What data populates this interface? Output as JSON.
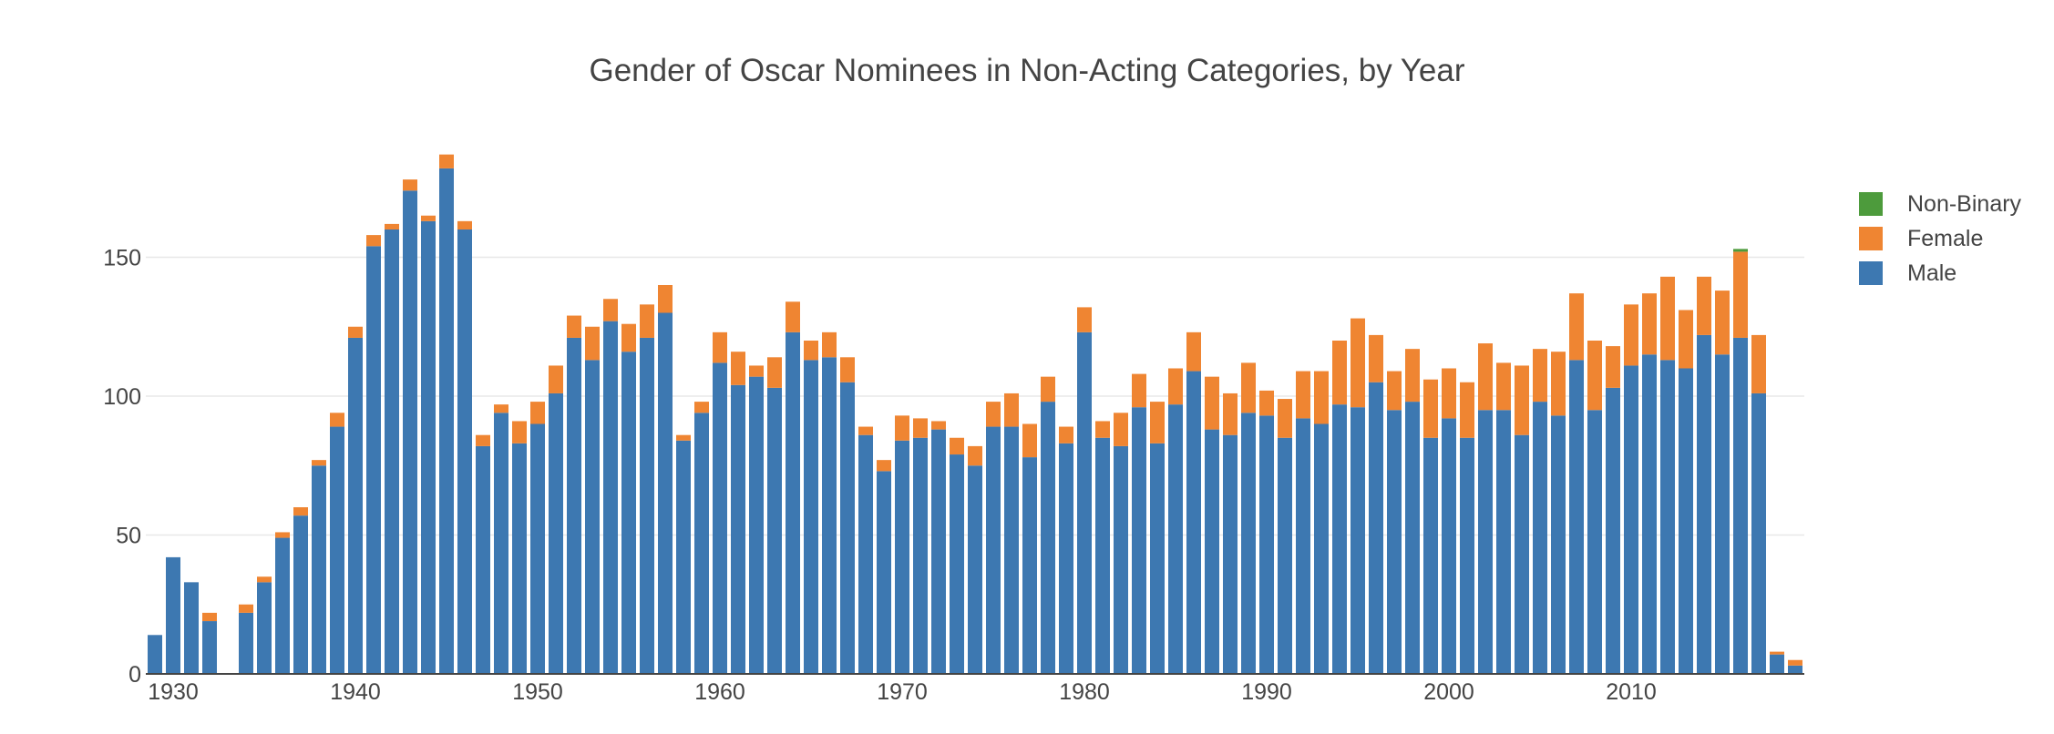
{
  "chart_data": {
    "type": "bar",
    "stacked": true,
    "title": "Gender of Oscar Nominees in Non-Acting Categories, by Year",
    "xlabel": "",
    "ylabel": "",
    "ylim": [
      0,
      200
    ],
    "xlim": [
      1928.5,
      2019.5
    ],
    "yticks": [
      0,
      50,
      100,
      150
    ],
    "xticks": [
      1930,
      1940,
      1950,
      1960,
      1970,
      1980,
      1990,
      2000,
      2010
    ],
    "grid": true,
    "legend": "right",
    "x": [
      1929,
      1930,
      1931,
      1932,
      1933,
      1934,
      1935,
      1936,
      1937,
      1938,
      1939,
      1940,
      1941,
      1942,
      1943,
      1944,
      1945,
      1946,
      1947,
      1948,
      1949,
      1950,
      1951,
      1952,
      1953,
      1954,
      1955,
      1956,
      1957,
      1958,
      1959,
      1960,
      1961,
      1962,
      1963,
      1964,
      1965,
      1966,
      1967,
      1968,
      1969,
      1970,
      1971,
      1972,
      1973,
      1974,
      1975,
      1976,
      1977,
      1978,
      1979,
      1980,
      1981,
      1982,
      1983,
      1984,
      1985,
      1986,
      1987,
      1988,
      1989,
      1990,
      1991,
      1992,
      1993,
      1994,
      1995,
      1996,
      1997,
      1998,
      1999,
      2000,
      2001,
      2002,
      2003,
      2004,
      2005,
      2006,
      2007,
      2008,
      2009,
      2010,
      2011,
      2012,
      2013,
      2014,
      2015,
      2016,
      2017,
      2018,
      2019
    ],
    "series": [
      {
        "name": "Male",
        "color": "#3d78b1",
        "values": [
          14,
          42,
          33,
          19,
          0,
          22,
          33,
          49,
          57,
          75,
          89,
          121,
          154,
          160,
          174,
          163,
          182,
          160,
          82,
          94,
          83,
          90,
          101,
          121,
          113,
          127,
          116,
          121,
          130,
          84,
          94,
          112,
          104,
          107,
          103,
          123,
          113,
          114,
          105,
          86,
          73,
          84,
          85,
          88,
          79,
          75,
          89,
          89,
          78,
          98,
          83,
          123,
          85,
          82,
          96,
          83,
          97,
          109,
          88,
          86,
          94,
          93,
          85,
          92,
          90,
          97,
          96,
          105,
          95,
          98,
          85,
          92,
          85,
          95,
          95,
          86,
          98,
          93,
          113,
          95,
          103,
          111,
          115,
          113,
          110,
          122,
          115,
          121,
          101,
          7,
          3
        ]
      },
      {
        "name": "Female",
        "color": "#ef8532",
        "values": [
          0,
          0,
          0,
          3,
          0,
          3,
          2,
          2,
          3,
          2,
          5,
          4,
          4,
          2,
          4,
          2,
          5,
          3,
          4,
          3,
          8,
          8,
          10,
          8,
          12,
          8,
          10,
          12,
          10,
          2,
          4,
          11,
          12,
          4,
          11,
          11,
          7,
          9,
          9,
          3,
          4,
          9,
          7,
          3,
          6,
          7,
          9,
          12,
          12,
          9,
          6,
          9,
          6,
          12,
          12,
          15,
          13,
          14,
          19,
          15,
          18,
          9,
          14,
          17,
          19,
          23,
          32,
          17,
          14,
          19,
          21,
          18,
          20,
          24,
          17,
          25,
          19,
          23,
          24,
          25,
          15,
          22,
          22,
          30,
          21,
          21,
          23,
          31,
          21,
          1,
          2
        ]
      },
      {
        "name": "Non-Binary",
        "color": "#4d9b3c",
        "values": [
          0,
          0,
          0,
          0,
          0,
          0,
          0,
          0,
          0,
          0,
          0,
          0,
          0,
          0,
          0,
          0,
          0,
          0,
          0,
          0,
          0,
          0,
          0,
          0,
          0,
          0,
          0,
          0,
          0,
          0,
          0,
          0,
          0,
          0,
          0,
          0,
          0,
          0,
          0,
          0,
          0,
          0,
          0,
          0,
          0,
          0,
          0,
          0,
          0,
          0,
          0,
          0,
          0,
          0,
          0,
          0,
          0,
          0,
          0,
          0,
          0,
          0,
          0,
          0,
          0,
          0,
          0,
          0,
          0,
          0,
          0,
          0,
          0,
          0,
          0,
          0,
          0,
          0,
          0,
          0,
          0,
          0,
          0,
          0,
          0,
          0,
          0,
          1,
          0,
          0,
          0
        ]
      }
    ]
  },
  "legend_items": [
    {
      "label": "Non-Binary",
      "color": "#4d9b3c"
    },
    {
      "label": "Female",
      "color": "#ef8532"
    },
    {
      "label": "Male",
      "color": "#3d78b1"
    }
  ]
}
